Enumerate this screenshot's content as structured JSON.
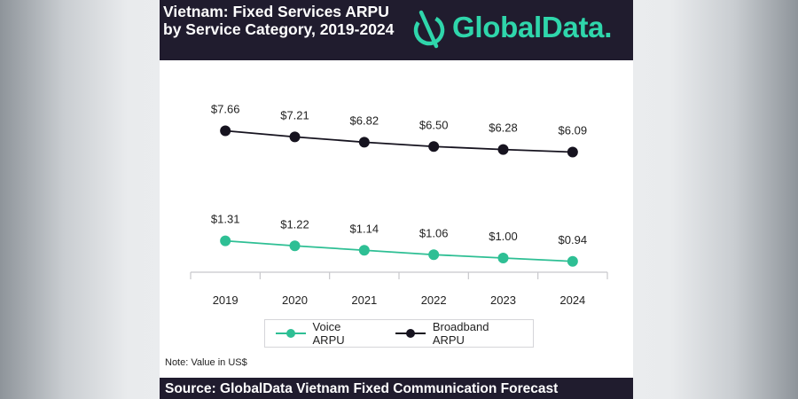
{
  "header": {
    "title": "Vietnam: Fixed Services ARPU by Service Category, 2019-2024",
    "brand": "GlobalData."
  },
  "chart_data": {
    "type": "line",
    "title": "Vietnam: Fixed Services ARPU by Service Category, 2019-2024",
    "xlabel": "",
    "ylabel": "",
    "x": [
      "2019",
      "2020",
      "2021",
      "2022",
      "2023",
      "2024"
    ],
    "ylim": [
      0,
      8
    ],
    "grid": false,
    "legend_position": "bottom",
    "series": [
      {
        "name": "Voice ARPU",
        "color": "#2ebf94",
        "values": [
          1.31,
          1.22,
          1.14,
          1.06,
          1.0,
          0.94
        ],
        "labels": [
          "$1.31",
          "$1.22",
          "$1.14",
          "$1.06",
          "$1.00",
          "$0.94"
        ]
      },
      {
        "name": "Broadband ARPU",
        "color": "#16131f",
        "values": [
          7.66,
          7.21,
          6.82,
          6.5,
          6.28,
          6.09
        ],
        "labels": [
          "$7.66",
          "$7.21",
          "$6.82",
          "$6.50",
          "$6.28",
          "$6.09"
        ]
      }
    ]
  },
  "note": "Note: Value in US$",
  "footer": "Source: GlobalData Vietnam Fixed Communication Forecast",
  "colors": {
    "header_bg": "#201c2e",
    "brand": "#2fd6ab",
    "axis": "#c8c8cc"
  }
}
